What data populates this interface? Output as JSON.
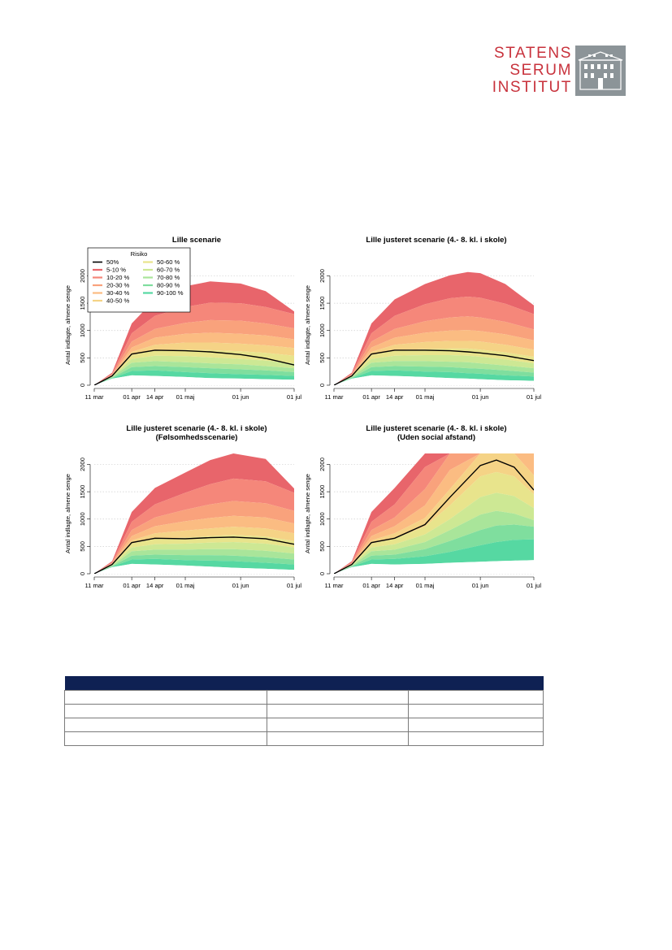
{
  "logo": {
    "lines": [
      "STATENS",
      "SERUM",
      "INSTITUT"
    ],
    "colors": {
      "text": "#c8323c",
      "badge": "#8c9498"
    }
  },
  "legend": {
    "title": "Risiko",
    "entries": [
      {
        "label": "50%",
        "color": "#000000",
        "type": "line"
      },
      {
        "label": "5-10 %",
        "color": "#e8656b"
      },
      {
        "label": "10-20 %",
        "color": "#f5877a"
      },
      {
        "label": "20-30 %",
        "color": "#f9a27c"
      },
      {
        "label": "30-40 %",
        "color": "#fbbc82"
      },
      {
        "label": "40-50 %",
        "color": "#f5d386"
      },
      {
        "label": "50-60 %",
        "color": "#e8e48c"
      },
      {
        "label": "60-70 %",
        "color": "#cde894"
      },
      {
        "label": "70-80 %",
        "color": "#a9e59a"
      },
      {
        "label": "80-90 %",
        "color": "#7fde9e"
      },
      {
        "label": "90-100 %",
        "color": "#56d8a2"
      }
    ]
  },
  "chart_data": [
    {
      "type": "area",
      "title": "Lille scenarie",
      "subtitle": "",
      "ylabel": "Antal indlagte, almene senge",
      "xlabel": "",
      "x": [
        "2020-03-11",
        "2020-03-21",
        "2020-04-01",
        "2020-04-14",
        "2020-05-01",
        "2020-05-15",
        "2020-06-01",
        "2020-06-15",
        "2020-07-01"
      ],
      "xticks": [
        {
          "label": "11 mar",
          "x": "2020-03-11"
        },
        {
          "label": "01 apr",
          "x": "2020-04-01"
        },
        {
          "label": "14 apr",
          "x": "2020-04-14"
        },
        {
          "label": "01 maj",
          "x": "2020-05-01"
        },
        {
          "label": "01 jun",
          "x": "2020-06-01"
        },
        {
          "label": "01 jul",
          "x": "2020-07-01"
        }
      ],
      "yticks": [
        0,
        500,
        1000,
        1500,
        2000
      ],
      "ylim": [
        0,
        2000
      ],
      "legend": "top-left",
      "grid": "horizontal dotted",
      "band_bounds": {
        "b0": [
          0,
          120,
          180,
          170,
          150,
          130,
          120,
          110,
          100
        ],
        "b1": [
          0,
          130,
          260,
          270,
          240,
          220,
          200,
          190,
          170
        ],
        "b2": [
          0,
          140,
          330,
          350,
          330,
          310,
          290,
          270,
          240
        ],
        "b3": [
          0,
          150,
          410,
          440,
          420,
          400,
          380,
          350,
          310
        ],
        "b4": [
          0,
          160,
          480,
          540,
          530,
          510,
          480,
          450,
          400
        ],
        "b5": [
          0,
          170,
          550,
          640,
          650,
          640,
          620,
          590,
          540
        ],
        "b6": [
          0,
          175,
          610,
          740,
          780,
          780,
          760,
          730,
          680
        ],
        "b7": [
          0,
          185,
          690,
          870,
          940,
          960,
          940,
          910,
          840
        ],
        "b8": [
          0,
          195,
          800,
          1030,
          1140,
          1190,
          1180,
          1130,
          1040
        ],
        "b9": [
          0,
          210,
          950,
          1270,
          1430,
          1510,
          1500,
          1430,
          1300
        ],
        "b10": [
          0,
          230,
          1130,
          1570,
          1810,
          1900,
          1860,
          1720,
          1350
        ]
      },
      "series": [
        {
          "name": "50%",
          "values": [
            0,
            170,
            570,
            640,
            630,
            610,
            560,
            490,
            370
          ]
        }
      ]
    },
    {
      "type": "area",
      "title": "Lille justeret scenarie (4.- 8. kl. i skole)",
      "subtitle": "",
      "ylabel": "Antal indlagte, almene senge",
      "xlabel": "",
      "x": [
        "2020-03-11",
        "2020-03-21",
        "2020-04-01",
        "2020-04-14",
        "2020-05-01",
        "2020-05-15",
        "2020-05-25",
        "2020-06-01",
        "2020-06-15",
        "2020-07-01"
      ],
      "xticks": [
        {
          "label": "11 mar",
          "x": "2020-03-11"
        },
        {
          "label": "01 apr",
          "x": "2020-04-01"
        },
        {
          "label": "14 apr",
          "x": "2020-04-14"
        },
        {
          "label": "01 maj",
          "x": "2020-05-01"
        },
        {
          "label": "01 jun",
          "x": "2020-06-01"
        },
        {
          "label": "01 jul",
          "x": "2020-07-01"
        }
      ],
      "yticks": [
        0,
        500,
        1000,
        1500,
        2000
      ],
      "ylim": [
        0,
        2000
      ],
      "legend": "none",
      "grid": "horizontal dotted",
      "band_bounds": {
        "b0": [
          0,
          120,
          180,
          170,
          150,
          130,
          120,
          110,
          90,
          80
        ],
        "b1": [
          0,
          130,
          260,
          270,
          250,
          240,
          220,
          210,
          180,
          160
        ],
        "b2": [
          0,
          140,
          330,
          350,
          340,
          330,
          310,
          300,
          270,
          230
        ],
        "b3": [
          0,
          150,
          410,
          440,
          440,
          430,
          420,
          400,
          360,
          310
        ],
        "b4": [
          0,
          160,
          480,
          540,
          550,
          550,
          540,
          520,
          470,
          400
        ],
        "b5": [
          0,
          170,
          550,
          640,
          660,
          670,
          670,
          650,
          600,
          520
        ],
        "b6": [
          0,
          175,
          610,
          740,
          790,
          810,
          810,
          800,
          740,
          650
        ],
        "b7": [
          0,
          185,
          690,
          870,
          960,
          1000,
          1010,
          990,
          930,
          820
        ],
        "b8": [
          0,
          195,
          800,
          1030,
          1170,
          1240,
          1260,
          1240,
          1160,
          1020
        ],
        "b9": [
          0,
          210,
          950,
          1270,
          1480,
          1590,
          1620,
          1600,
          1490,
          1300
        ],
        "b10": [
          0,
          230,
          1130,
          1570,
          1850,
          2010,
          2070,
          2050,
          1850,
          1460
        ]
      },
      "series": [
        {
          "name": "50%",
          "values": [
            0,
            170,
            570,
            640,
            640,
            630,
            610,
            590,
            540,
            450
          ]
        }
      ]
    },
    {
      "type": "area",
      "title": "Lille justeret scenarie (4.- 8. kl. i skole)",
      "subtitle": "(Følsomhedsscenarie)",
      "ylabel": "Antal indlagte, almene senge",
      "xlabel": "",
      "x": [
        "2020-03-11",
        "2020-03-21",
        "2020-04-01",
        "2020-04-14",
        "2020-05-01",
        "2020-05-15",
        "2020-05-28",
        "2020-06-15",
        "2020-07-01"
      ],
      "xticks": [
        {
          "label": "11 mar",
          "x": "2020-03-11"
        },
        {
          "label": "01 apr",
          "x": "2020-04-01"
        },
        {
          "label": "14 apr",
          "x": "2020-04-14"
        },
        {
          "label": "01 maj",
          "x": "2020-05-01"
        },
        {
          "label": "01 jun",
          "x": "2020-06-01"
        },
        {
          "label": "01 jul",
          "x": "2020-07-01"
        }
      ],
      "yticks": [
        0,
        500,
        1000,
        1500,
        2000
      ],
      "ylim": [
        0,
        2000
      ],
      "legend": "none",
      "grid": "horizontal dotted",
      "band_bounds": {
        "b0": [
          0,
          120,
          180,
          170,
          150,
          130,
          110,
          90,
          70
        ],
        "b1": [
          0,
          130,
          260,
          270,
          250,
          240,
          230,
          200,
          170
        ],
        "b2": [
          0,
          140,
          330,
          350,
          340,
          340,
          330,
          300,
          260
        ],
        "b3": [
          0,
          150,
          410,
          440,
          440,
          450,
          450,
          420,
          370
        ],
        "b4": [
          0,
          160,
          480,
          540,
          550,
          570,
          580,
          550,
          480
        ],
        "b5": [
          0,
          170,
          550,
          640,
          660,
          690,
          710,
          680,
          600
        ],
        "b6": [
          0,
          175,
          610,
          740,
          790,
          830,
          860,
          830,
          740
        ],
        "b7": [
          0,
          185,
          690,
          870,
          960,
          1020,
          1060,
          1030,
          920
        ],
        "b8": [
          0,
          195,
          800,
          1030,
          1170,
          1270,
          1330,
          1290,
          1150
        ],
        "b9": [
          0,
          210,
          950,
          1270,
          1480,
          1640,
          1740,
          1690,
          1480
        ],
        "b10": [
          0,
          230,
          1130,
          1570,
          1850,
          2080,
          2220,
          2100,
          1560
        ]
      },
      "series": [
        {
          "name": "50%",
          "values": [
            0,
            170,
            570,
            650,
            640,
            660,
            670,
            640,
            540
          ]
        }
      ]
    },
    {
      "type": "area",
      "title": "Lille justeret scenarie (4.- 8. kl. i skole)",
      "subtitle": "(Uden social afstand)",
      "ylabel": "Antal indlagte, almene senge",
      "xlabel": "",
      "x": [
        "2020-03-11",
        "2020-03-21",
        "2020-04-01",
        "2020-04-14",
        "2020-05-01",
        "2020-05-15",
        "2020-06-01",
        "2020-06-10",
        "2020-06-20",
        "2020-07-01"
      ],
      "xticks": [
        {
          "label": "11 mar",
          "x": "2020-03-11"
        },
        {
          "label": "01 apr",
          "x": "2020-04-01"
        },
        {
          "label": "14 apr",
          "x": "2020-04-14"
        },
        {
          "label": "01 maj",
          "x": "2020-05-01"
        },
        {
          "label": "01 jun",
          "x": "2020-06-01"
        },
        {
          "label": "01 jul",
          "x": "2020-07-01"
        }
      ],
      "yticks": [
        0,
        500,
        1000,
        1500,
        2000
      ],
      "ylim": [
        0,
        2000
      ],
      "legend": "none",
      "grid": "horizontal dotted",
      "band_bounds": {
        "b0": [
          0,
          120,
          180,
          170,
          180,
          200,
          220,
          230,
          240,
          250
        ],
        "b1": [
          0,
          130,
          260,
          270,
          320,
          400,
          520,
          580,
          620,
          630
        ],
        "b2": [
          0,
          140,
          330,
          350,
          450,
          600,
          800,
          880,
          900,
          860
        ],
        "b3": [
          0,
          150,
          410,
          440,
          580,
          800,
          1080,
          1150,
          1100,
          980
        ],
        "b4": [
          0,
          160,
          480,
          540,
          720,
          1000,
          1400,
          1480,
          1420,
          1200
        ],
        "b5": [
          0,
          170,
          550,
          640,
          860,
          1250,
          1780,
          1860,
          1780,
          1450
        ],
        "b6": [
          0,
          175,
          610,
          740,
          1020,
          1550,
          2200,
          2300,
          2200,
          1800
        ],
        "b7": [
          0,
          185,
          690,
          870,
          1250,
          1900,
          2400,
          2400,
          2400,
          2200
        ],
        "b8": [
          0,
          195,
          800,
          1030,
          1550,
          2300,
          2400,
          2400,
          2400,
          2400
        ],
        "b9": [
          0,
          210,
          950,
          1270,
          1950,
          2400,
          2400,
          2400,
          2400,
          2400
        ],
        "b10": [
          0,
          230,
          1130,
          1570,
          2300,
          2400,
          2400,
          2400,
          2400,
          2400
        ]
      },
      "series": [
        {
          "name": "50%",
          "values": [
            0,
            170,
            570,
            650,
            900,
            1400,
            1980,
            2080,
            1950,
            1530
          ]
        }
      ]
    }
  ],
  "table": {
    "header_color": "#0f2153",
    "columns": [
      "",
      "",
      ""
    ],
    "rows": [
      [
        "",
        "",
        ""
      ],
      [
        "",
        "",
        ""
      ],
      [
        "",
        "",
        ""
      ],
      [
        "",
        "",
        ""
      ]
    ]
  }
}
